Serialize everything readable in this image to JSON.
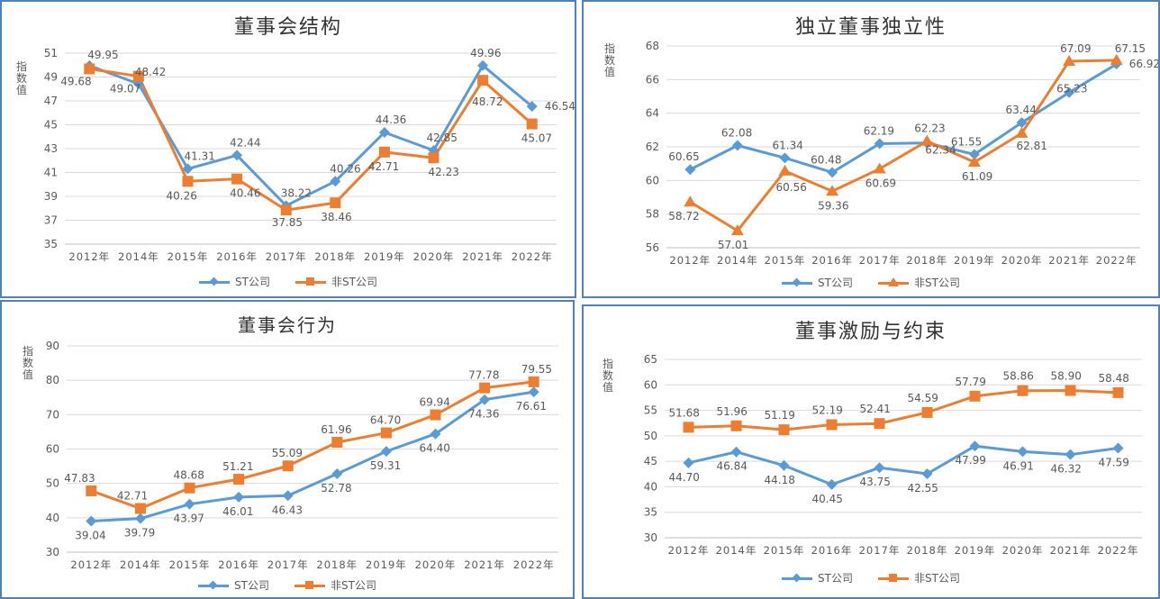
{
  "colors": {
    "st": "#5b9bd5",
    "non_st": "#ed7d31",
    "axis_text": "#595959",
    "grid": "#d9d9d9",
    "border": "#4f81bd"
  },
  "common": {
    "ylabel": "指数值",
    "legend": [
      "ST公司",
      "非ST公司"
    ]
  },
  "chart_data": [
    {
      "type": "line",
      "title": "董事会结构",
      "ylabel": "指数值",
      "categories": [
        "2012年",
        "2014年",
        "2015年",
        "2016年",
        "2017年",
        "2018年",
        "2019年",
        "2020年",
        "2021年",
        "2022年"
      ],
      "ylim": [
        35,
        51
      ],
      "ytick_step": 2,
      "yticks": [
        "35",
        "37",
        "39",
        "41",
        "43",
        "45",
        "47",
        "49",
        "51"
      ],
      "markers": [
        "diamond",
        "square"
      ],
      "series": [
        {
          "name": "ST公司",
          "values": [
            49.95,
            48.42,
            41.31,
            42.44,
            38.22,
            40.26,
            44.36,
            42.85,
            49.96,
            46.54
          ],
          "labels": [
            "49.95",
            "48.42",
            "41.31",
            "42.44",
            "38.22",
            "40.26",
            "44.36",
            "42.85",
            "49.96",
            "46.54"
          ]
        },
        {
          "name": "非ST公司",
          "values": [
            49.68,
            49.07,
            40.26,
            40.46,
            37.85,
            38.46,
            42.71,
            42.23,
            48.72,
            45.07
          ],
          "labels": [
            "49.68",
            "49.07",
            "40.26",
            "40.46",
            "37.85",
            "38.46",
            "42.71",
            "42.23",
            "48.72",
            "45.07"
          ]
        }
      ],
      "grid": true,
      "legend": "bottom"
    },
    {
      "type": "line",
      "title": "独立董事独立性",
      "ylabel": "指数值",
      "categories": [
        "2012年",
        "2014年",
        "2015年",
        "2016年",
        "2017年",
        "2018年",
        "2019年",
        "2020年",
        "2021年",
        "2022年"
      ],
      "ylim": [
        56,
        68
      ],
      "ytick_step": 2,
      "yticks": [
        "56",
        "58",
        "60",
        "62",
        "64",
        "66",
        "68"
      ],
      "markers": [
        "diamond",
        "triangle"
      ],
      "series": [
        {
          "name": "ST公司",
          "values": [
            60.65,
            62.08,
            61.34,
            60.48,
            62.19,
            62.23,
            61.55,
            63.44,
            65.23,
            66.92
          ],
          "labels": [
            "60.65",
            "62.08",
            "61.34",
            "60.48",
            "62.19",
            "62.23",
            "61.55",
            "63.44",
            "65.23",
            "66.92"
          ]
        },
        {
          "name": "非ST公司",
          "values": [
            58.72,
            57.01,
            60.56,
            59.36,
            60.69,
            62.34,
            61.09,
            62.81,
            67.09,
            67.15
          ],
          "labels": [
            "58.72",
            "57.01",
            "60.56",
            "59.36",
            "60.69",
            "62.34",
            "61.09",
            "62.81",
            "67.09",
            "67.15"
          ]
        }
      ],
      "grid": true,
      "legend": "bottom"
    },
    {
      "type": "line",
      "title": "董事会行为",
      "ylabel": "指数值",
      "categories": [
        "2012年",
        "2014年",
        "2015年",
        "2016年",
        "2017年",
        "2018年",
        "2019年",
        "2020年",
        "2021年",
        "2022年"
      ],
      "ylim": [
        30,
        90
      ],
      "ytick_step": 10,
      "yticks": [
        "30",
        "40",
        "50",
        "60",
        "70",
        "80",
        "90"
      ],
      "markers": [
        "diamond",
        "square"
      ],
      "series": [
        {
          "name": "ST公司",
          "values": [
            39.04,
            39.79,
            43.97,
            46.01,
            46.43,
            52.78,
            59.31,
            64.4,
            74.36,
            76.61
          ],
          "labels": [
            "39.04",
            "39.79",
            "43.97",
            "46.01",
            "46.43",
            "52.78",
            "59.31",
            "64.40",
            "74.36",
            "76.61"
          ]
        },
        {
          "name": "非ST公司",
          "values": [
            47.83,
            42.71,
            48.68,
            51.21,
            55.09,
            61.96,
            64.7,
            69.94,
            77.78,
            79.55
          ],
          "labels": [
            "47.83",
            "42.71",
            "48.68",
            "51.21",
            "55.09",
            "61.96",
            "64.70",
            "69.94",
            "77.78",
            "79.55"
          ]
        }
      ],
      "grid": true,
      "legend": "bottom"
    },
    {
      "type": "line",
      "title": "董事激励与约束",
      "ylabel": "指数值",
      "categories": [
        "2012年",
        "2014年",
        "2015年",
        "2016年",
        "2017年",
        "2018年",
        "2019年",
        "2020年",
        "2021年",
        "2022年"
      ],
      "ylim": [
        30,
        65
      ],
      "ytick_step": 5,
      "yticks": [
        "30",
        "35",
        "40",
        "45",
        "50",
        "55",
        "60",
        "65"
      ],
      "markers": [
        "diamond",
        "square"
      ],
      "series": [
        {
          "name": "ST公司",
          "values": [
            44.7,
            46.84,
            44.18,
            40.45,
            43.75,
            42.55,
            47.99,
            46.91,
            46.32,
            47.59
          ],
          "labels": [
            "44.70",
            "46.84",
            "44.18",
            "40.45",
            "43.75",
            "42.55",
            "47.99",
            "46.91",
            "46.32",
            "47.59"
          ]
        },
        {
          "name": "非ST公司",
          "values": [
            51.68,
            51.96,
            51.19,
            52.19,
            52.41,
            54.59,
            57.79,
            58.86,
            58.9,
            58.48
          ],
          "labels": [
            "51.68",
            "51.96",
            "51.19",
            "52.19",
            "52.41",
            "54.59",
            "57.79",
            "58.86",
            "58.90",
            "58.48"
          ]
        }
      ],
      "grid": true,
      "legend": "bottom"
    }
  ]
}
